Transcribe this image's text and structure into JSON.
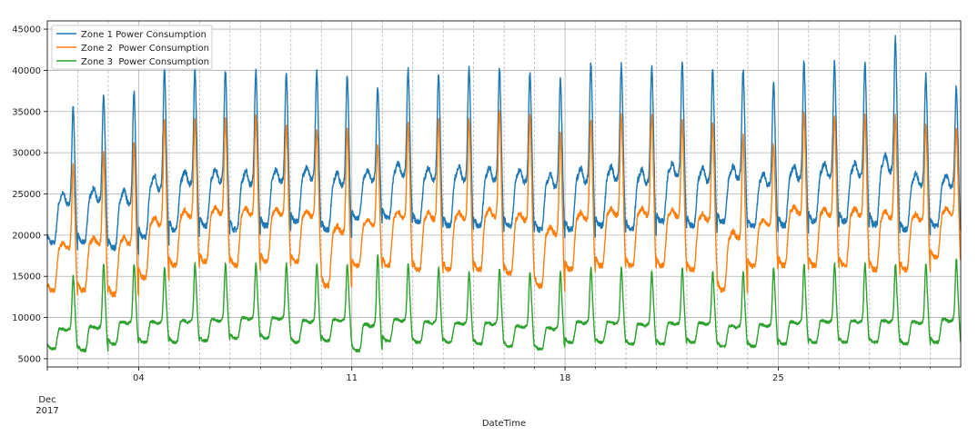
{
  "chart_data": {
    "type": "line",
    "title": "",
    "xlabel": "DateTime",
    "ylabel": "",
    "x_range": [
      "2017-12-01T00:00",
      "2017-12-30T23:50"
    ],
    "ylim": [
      4000,
      46000
    ],
    "y_ticks": [
      5000,
      10000,
      15000,
      20000,
      25000,
      30000,
      35000,
      40000,
      45000
    ],
    "x_major_ticks": [
      {
        "date": "2017-12-04",
        "label": "04"
      },
      {
        "date": "2017-12-11",
        "label": "11"
      },
      {
        "date": "2017-12-18",
        "label": "18"
      },
      {
        "date": "2017-12-25",
        "label": "25"
      }
    ],
    "x_origin_label": {
      "day": "Dec",
      "year": "2017"
    },
    "grid": true,
    "minor_grid": "dashed vertical line at every day boundary",
    "legend_position": "top-left",
    "series": [
      {
        "name": "Zone 1 Power Consumption",
        "color": "#1f77b4",
        "x": [
          "2017-12-01",
          "2017-12-02",
          "2017-12-03",
          "2017-12-04",
          "2017-12-05",
          "2017-12-06",
          "2017-12-07",
          "2017-12-08",
          "2017-12-09",
          "2017-12-10",
          "2017-12-11",
          "2017-12-12",
          "2017-12-13",
          "2017-12-14",
          "2017-12-15",
          "2017-12-16",
          "2017-12-17",
          "2017-12-18",
          "2017-12-19",
          "2017-12-20",
          "2017-12-21",
          "2017-12-22",
          "2017-12-23",
          "2017-12-24",
          "2017-12-25",
          "2017-12-26",
          "2017-12-27",
          "2017-12-28",
          "2017-12-29",
          "2017-12-30"
        ],
        "daily_min": [
          18500,
          18500,
          17800,
          19000,
          20000,
          20500,
          20000,
          20500,
          21000,
          20000,
          21500,
          21500,
          21000,
          20500,
          20500,
          20500,
          20000,
          20000,
          20500,
          20000,
          21000,
          20500,
          21000,
          20500,
          20500,
          21000,
          21000,
          20500,
          20000,
          20500
        ],
        "daily_peak": [
          35500,
          37000,
          37500,
          40200,
          40000,
          40000,
          40000,
          39800,
          39800,
          39500,
          38000,
          40000,
          39500,
          40500,
          40300,
          39800,
          39000,
          41000,
          40700,
          40500,
          41000,
          40200,
          40000,
          38500,
          41000,
          41000,
          41000,
          44000,
          39500,
          38000
        ]
      },
      {
        "name": "Zone 2  Power Consumption",
        "color": "#ff7f0e",
        "x": [
          "2017-12-01",
          "2017-12-02",
          "2017-12-03",
          "2017-12-04",
          "2017-12-05",
          "2017-12-06",
          "2017-12-07",
          "2017-12-08",
          "2017-12-09",
          "2017-12-10",
          "2017-12-11",
          "2017-12-12",
          "2017-12-13",
          "2017-12-14",
          "2017-12-15",
          "2017-12-16",
          "2017-12-17",
          "2017-12-18",
          "2017-12-19",
          "2017-12-20",
          "2017-12-21",
          "2017-12-22",
          "2017-12-23",
          "2017-12-24",
          "2017-12-25",
          "2017-12-26",
          "2017-12-27",
          "2017-12-28",
          "2017-12-29",
          "2017-12-30"
        ],
        "daily_min": [
          13000,
          13000,
          12500,
          14500,
          16000,
          16500,
          16000,
          16500,
          16500,
          13500,
          16000,
          16000,
          15500,
          15500,
          15500,
          15000,
          13500,
          15500,
          16000,
          16000,
          16000,
          15500,
          13000,
          16000,
          16000,
          16000,
          16000,
          15500,
          15500,
          17000
        ],
        "daily_peak": [
          28500,
          30000,
          31000,
          34000,
          34000,
          34000,
          34500,
          33500,
          33000,
          33000,
          31000,
          33500,
          34000,
          34000,
          35000,
          34500,
          32500,
          34000,
          34500,
          34500,
          34000,
          33500,
          32000,
          31000,
          35000,
          34500,
          34500,
          34500,
          33500,
          33000
        ]
      },
      {
        "name": "Zone 3  Power Consumption",
        "color": "#2ca02c",
        "x": [
          "2017-12-01",
          "2017-12-02",
          "2017-12-03",
          "2017-12-04",
          "2017-12-05",
          "2017-12-06",
          "2017-12-07",
          "2017-12-08",
          "2017-12-09",
          "2017-12-10",
          "2017-12-11",
          "2017-12-12",
          "2017-12-13",
          "2017-12-14",
          "2017-12-15",
          "2017-12-16",
          "2017-12-17",
          "2017-12-18",
          "2017-12-19",
          "2017-12-20",
          "2017-12-21",
          "2017-12-22",
          "2017-12-23",
          "2017-12-24",
          "2017-12-25",
          "2017-12-26",
          "2017-12-27",
          "2017-12-28",
          "2017-12-29",
          "2017-12-30"
        ],
        "daily_min": [
          6200,
          6000,
          6800,
          7000,
          7000,
          7200,
          7500,
          7500,
          7000,
          7200,
          6000,
          7200,
          7000,
          7000,
          6800,
          6500,
          6200,
          7000,
          7000,
          6800,
          6800,
          7000,
          6500,
          6500,
          6800,
          7000,
          7000,
          7000,
          6800,
          7000
        ],
        "daily_peak": [
          15000,
          16500,
          16500,
          16000,
          16500,
          16500,
          16500,
          16500,
          16500,
          16500,
          17500,
          16500,
          16000,
          15500,
          16000,
          15500,
          15500,
          16000,
          16000,
          15500,
          16000,
          15500,
          15500,
          16000,
          16500,
          16500,
          16500,
          16500,
          16500,
          17000
        ]
      }
    ]
  }
}
